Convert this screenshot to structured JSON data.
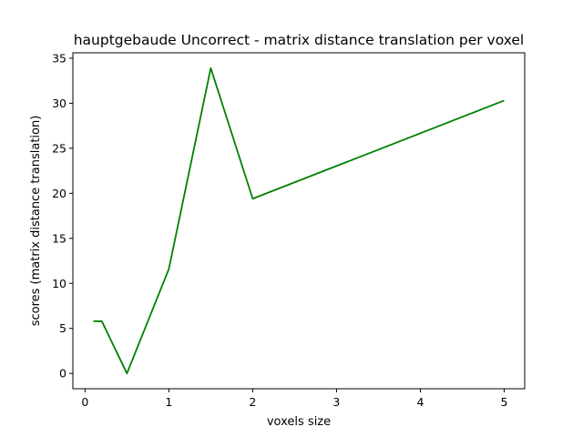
{
  "chart_data": {
    "type": "line",
    "title": "hauptgebaude Uncorrect - matrix distance translation per voxel",
    "xlabel": "voxels size",
    "ylabel": "scores (matrix distance translation)",
    "x": [
      0.1,
      0.2,
      0.5,
      1.0,
      1.5,
      2.0,
      5.0
    ],
    "series": [
      {
        "color": "#008000",
        "values": [
          5.8,
          5.8,
          0.0,
          11.6,
          33.9,
          19.4,
          30.3
        ]
      }
    ],
    "xlim": [
      -0.145,
      5.245
    ],
    "ylim": [
      -1.7,
      35.6
    ],
    "xticks": [
      0,
      1,
      2,
      3,
      4,
      5
    ],
    "xtick_labels": [
      "0",
      "1",
      "2",
      "3",
      "4",
      "5"
    ],
    "yticks": [
      0,
      5,
      10,
      15,
      20,
      25,
      30,
      35
    ],
    "ytick_labels": [
      "0",
      "5",
      "10",
      "15",
      "20",
      "25",
      "30",
      "35"
    ],
    "grid": false,
    "legend": "none"
  }
}
